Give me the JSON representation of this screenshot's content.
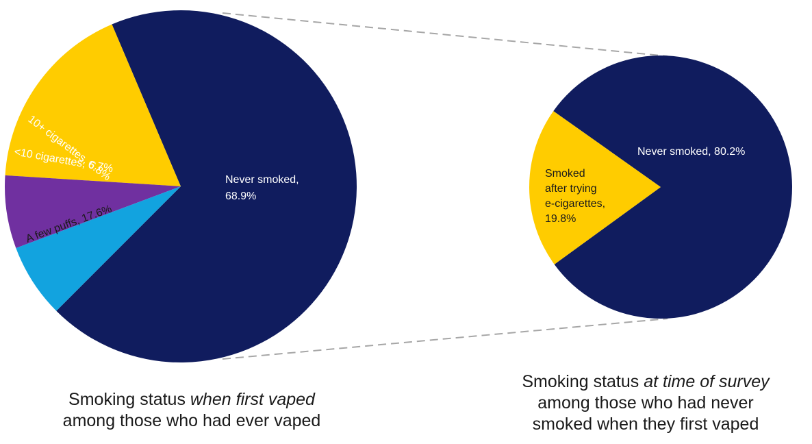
{
  "chart_data": [
    {
      "type": "pie",
      "slices": [
        {
          "label": "Never smoked, 68.9%",
          "value": 68.9,
          "color": "#101c5e",
          "text_color": "#ffffff"
        },
        {
          "label": "A few puffs, 17.6%",
          "value": 17.6,
          "color": "#ffcc00",
          "text_color": "#1a1a1a"
        },
        {
          "label": "<10 cigarettes, 6.7%",
          "value": 6.7,
          "color": "#7030a0",
          "text_color": "#ffffff"
        },
        {
          "label": "10+ cigarettes, 6.8%",
          "value": 6.8,
          "color": "#12a3df",
          "text_color": "#ffffff"
        }
      ],
      "caption": {
        "line1_before": "Smoking status ",
        "line1_emphasis": "when first vaped",
        "line2": "among those who had ever vaped"
      }
    },
    {
      "type": "pie",
      "slices": [
        {
          "label": "Never smoked, 80.2%",
          "value": 80.2,
          "color": "#101c5e",
          "text_color": "#ffffff"
        },
        {
          "label": "Smoked after trying e-cigarettes, 19.8%",
          "value": 19.8,
          "color": "#ffcc00",
          "text_color": "#1a1a1a"
        }
      ],
      "caption": {
        "line1_before": "Smoking status ",
        "line1_emphasis": "at time of survey",
        "line2": "among those who had never",
        "line3": "smoked when they first vaped"
      }
    }
  ]
}
